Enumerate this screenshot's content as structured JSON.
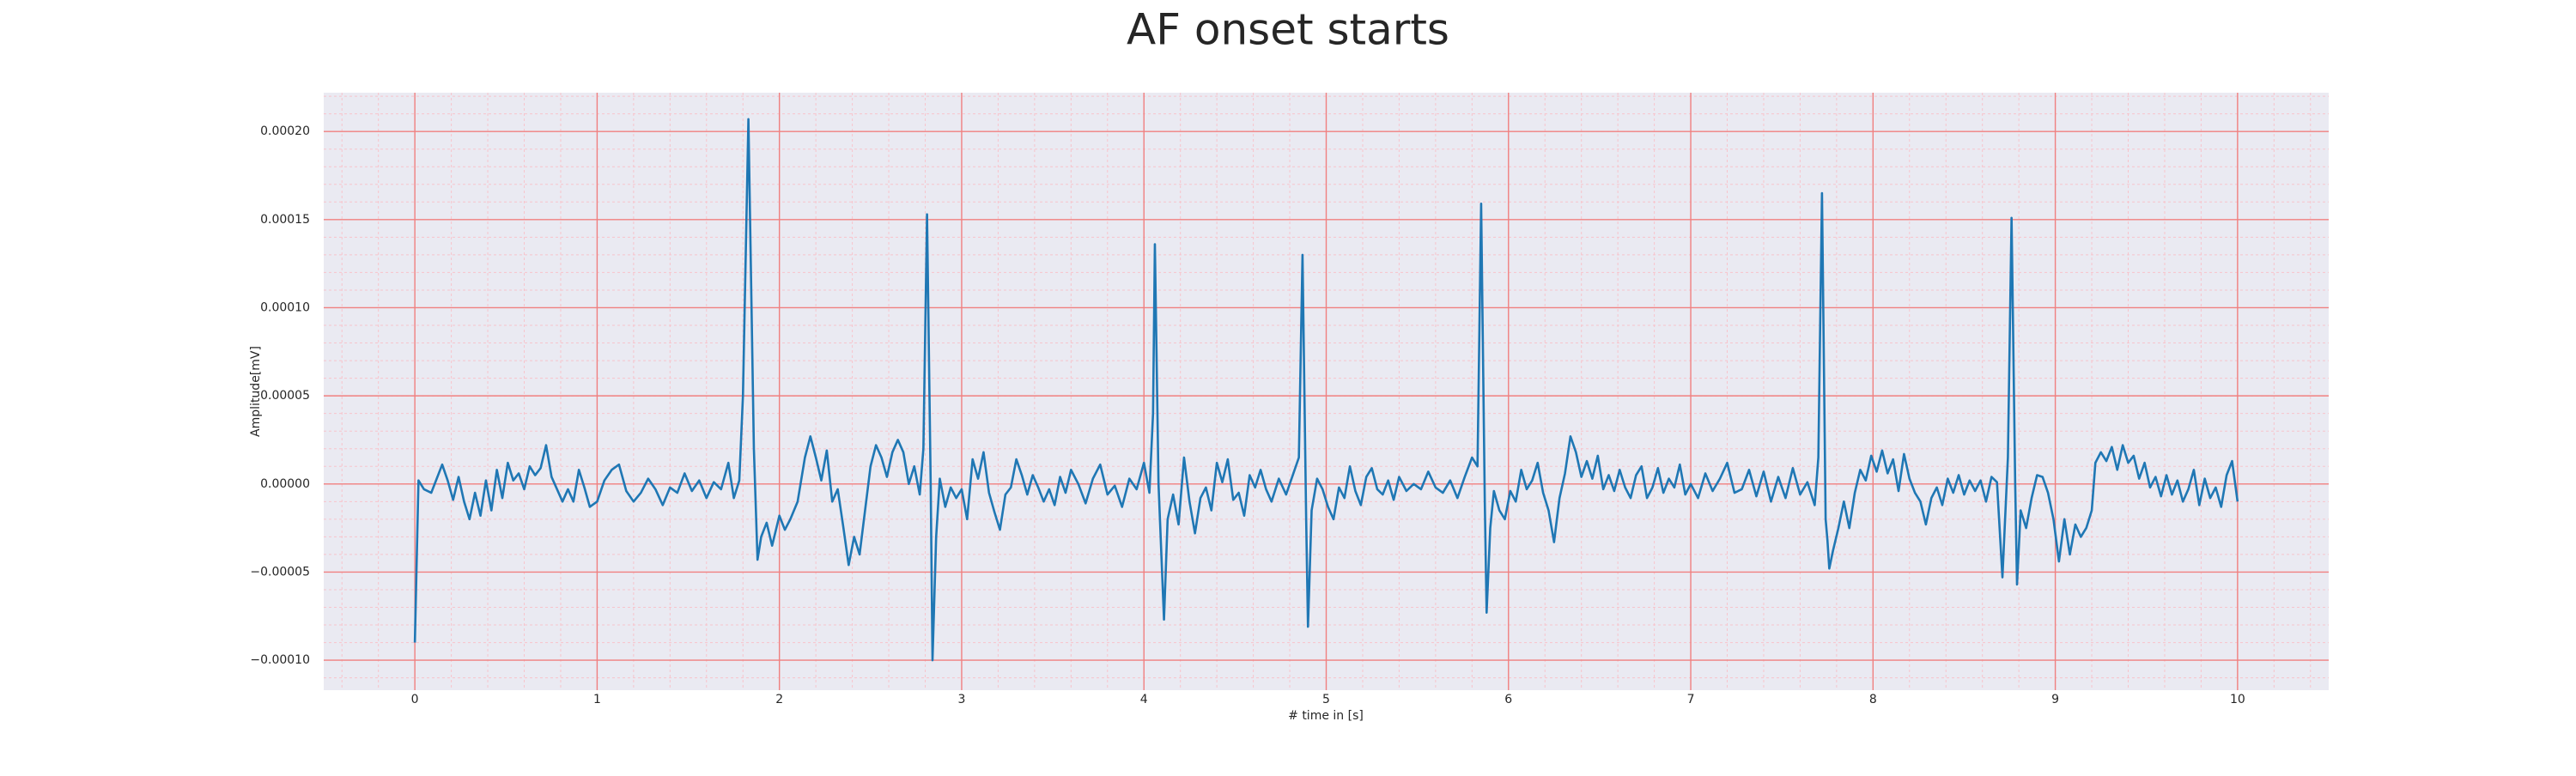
{
  "chart_data": {
    "type": "line",
    "title": "AF onset starts",
    "xlabel": "# time in [s]",
    "ylabel": "Amplitude[mV]",
    "color": "#1f77b4",
    "background": "#eaeaf2",
    "grid": true,
    "grid_color": "#f08080",
    "minor_grid": true,
    "minor_grid_color": "#f7c4cc",
    "minor_divisions": 5,
    "xlim": [
      -0.5,
      10.5
    ],
    "ylim": [
      -0.000117,
      0.000222
    ],
    "xticks": [
      0,
      1,
      2,
      3,
      4,
      5,
      6,
      7,
      8,
      9,
      10
    ],
    "yticks": [
      {
        "value": -0.0001,
        "label": "−0.00010"
      },
      {
        "value": -5e-05,
        "label": "−0.00005"
      },
      {
        "value": 0,
        "label": "0.00000"
      },
      {
        "value": 5e-05,
        "label": "0.00005"
      },
      {
        "value": 0.0001,
        "label": "0.00010"
      },
      {
        "value": 0.00015,
        "label": "0.00015"
      },
      {
        "value": 0.0002,
        "label": "0.00020"
      }
    ],
    "x": [
      0,
      0.02,
      0.05,
      0.09,
      0.12,
      0.15,
      0.18,
      0.21,
      0.24,
      0.27,
      0.3,
      0.33,
      0.36,
      0.39,
      0.42,
      0.45,
      0.48,
      0.51,
      0.54,
      0.57,
      0.6,
      0.63,
      0.66,
      0.69,
      0.72,
      0.75,
      0.78,
      0.81,
      0.84,
      0.87,
      0.9,
      0.93,
      0.96,
      1.0,
      1.04,
      1.08,
      1.12,
      1.16,
      1.2,
      1.24,
      1.28,
      1.32,
      1.36,
      1.4,
      1.44,
      1.48,
      1.52,
      1.56,
      1.6,
      1.64,
      1.68,
      1.72,
      1.75,
      1.78,
      1.8,
      1.83,
      1.86,
      1.88,
      1.9,
      1.93,
      1.96,
      2.0,
      2.03,
      2.06,
      2.1,
      2.14,
      2.17,
      2.2,
      2.23,
      2.26,
      2.29,
      2.32,
      2.35,
      2.38,
      2.41,
      2.44,
      2.47,
      2.5,
      2.53,
      2.56,
      2.59,
      2.62,
      2.65,
      2.68,
      2.71,
      2.74,
      2.77,
      2.79,
      2.81,
      2.83,
      2.84,
      2.86,
      2.88,
      2.91,
      2.94,
      2.97,
      3.0,
      3.03,
      3.06,
      3.09,
      3.12,
      3.15,
      3.18,
      3.21,
      3.24,
      3.27,
      3.3,
      3.33,
      3.36,
      3.39,
      3.42,
      3.45,
      3.48,
      3.51,
      3.54,
      3.57,
      3.6,
      3.64,
      3.68,
      3.72,
      3.76,
      3.8,
      3.84,
      3.88,
      3.92,
      3.96,
      4.0,
      4.03,
      4.05,
      4.06,
      4.08,
      4.11,
      4.13,
      4.16,
      4.19,
      4.22,
      4.25,
      4.28,
      4.31,
      4.34,
      4.37,
      4.4,
      4.43,
      4.46,
      4.49,
      4.52,
      4.55,
      4.58,
      4.61,
      4.64,
      4.67,
      4.7,
      4.74,
      4.78,
      4.82,
      4.85,
      4.87,
      4.89,
      4.9,
      4.92,
      4.95,
      4.98,
      5.01,
      5.04,
      5.07,
      5.1,
      5.13,
      5.16,
      5.19,
      5.22,
      5.25,
      5.28,
      5.31,
      5.34,
      5.37,
      5.4,
      5.44,
      5.48,
      5.52,
      5.56,
      5.6,
      5.64,
      5.68,
      5.72,
      5.76,
      5.8,
      5.83,
      5.85,
      5.87,
      5.88,
      5.9,
      5.92,
      5.95,
      5.98,
      6.01,
      6.04,
      6.07,
      6.1,
      6.13,
      6.16,
      6.19,
      6.22,
      6.25,
      6.28,
      6.31,
      6.34,
      6.37,
      6.4,
      6.43,
      6.46,
      6.49,
      6.52,
      6.55,
      6.58,
      6.61,
      6.64,
      6.67,
      6.7,
      6.73,
      6.76,
      6.79,
      6.82,
      6.85,
      6.88,
      6.91,
      6.94,
      6.97,
      7.0,
      7.04,
      7.08,
      7.12,
      7.16,
      7.2,
      7.24,
      7.28,
      7.32,
      7.36,
      7.4,
      7.44,
      7.48,
      7.52,
      7.56,
      7.6,
      7.64,
      7.68,
      7.7,
      7.72,
      7.74,
      7.75,
      7.76,
      7.78,
      7.81,
      7.84,
      7.87,
      7.9,
      7.93,
      7.96,
      7.99,
      8.02,
      8.05,
      8.08,
      8.11,
      8.14,
      8.17,
      8.2,
      8.23,
      8.26,
      8.29,
      8.32,
      8.35,
      8.38,
      8.41,
      8.44,
      8.47,
      8.5,
      8.53,
      8.56,
      8.59,
      8.62,
      8.65,
      8.68,
      8.71,
      8.74,
      8.76,
      8.78,
      8.79,
      8.81,
      8.84,
      8.87,
      8.9,
      8.93,
      8.96,
      8.99,
      9.02,
      9.05,
      9.08,
      9.11,
      9.14,
      9.17,
      9.2,
      9.22,
      9.25,
      9.28,
      9.31,
      9.34,
      9.37,
      9.4,
      9.43,
      9.46,
      9.49,
      9.52,
      9.55,
      9.58,
      9.61,
      9.64,
      9.67,
      9.7,
      9.73,
      9.76,
      9.79,
      9.82,
      9.85,
      9.88,
      9.91,
      9.94,
      9.97,
      10.0
    ],
    "values": [
      -9e-05,
      2e-06,
      -3e-06,
      -5e-06,
      3e-06,
      1.1e-05,
      2e-06,
      -9e-06,
      4e-06,
      -1e-05,
      -2e-05,
      -5e-06,
      -1.8e-05,
      2e-06,
      -1.5e-05,
      8e-06,
      -8e-06,
      1.2e-05,
      2e-06,
      6e-06,
      -3e-06,
      1e-05,
      5e-06,
      9e-06,
      2.2e-05,
      4e-06,
      -3e-06,
      -1e-05,
      -3e-06,
      -1e-05,
      8e-06,
      -2e-06,
      -1.3e-05,
      -1e-05,
      2e-06,
      8e-06,
      1.1e-05,
      -4e-06,
      -1e-05,
      -5e-06,
      3e-06,
      -3e-06,
      -1.2e-05,
      -2e-06,
      -5e-06,
      6e-06,
      -4e-06,
      2e-06,
      -8e-06,
      1e-06,
      -3e-06,
      1.2e-05,
      -8e-06,
      2e-06,
      5e-05,
      0.000207,
      2e-05,
      -4.3e-05,
      -3e-05,
      -2.2e-05,
      -3.5e-05,
      -1.8e-05,
      -2.6e-05,
      -2e-05,
      -1e-05,
      1.5e-05,
      2.7e-05,
      1.5e-05,
      2e-06,
      1.9e-05,
      -1e-05,
      -3e-06,
      -2.4e-05,
      -4.6e-05,
      -3e-05,
      -4e-05,
      -1.5e-05,
      1e-05,
      2.2e-05,
      1.5e-05,
      4e-06,
      1.8e-05,
      2.5e-05,
      1.8e-05,
      0,
      1e-05,
      -6e-06,
      2e-05,
      0.000153,
      0,
      -0.0001,
      -3e-05,
      3e-06,
      -1.3e-05,
      -2e-06,
      -8e-06,
      -3e-06,
      -2e-05,
      1.4e-05,
      3e-06,
      1.8e-05,
      -5e-06,
      -1.6e-05,
      -2.6e-05,
      -6e-06,
      -2e-06,
      1.4e-05,
      5e-06,
      -6e-06,
      5e-06,
      -2e-06,
      -1e-05,
      -3e-06,
      -1.2e-05,
      4e-06,
      -5e-06,
      8e-06,
      0,
      -1.1e-05,
      3e-06,
      1.1e-05,
      -6e-06,
      -1e-06,
      -1.3e-05,
      3e-06,
      -3e-06,
      1.2e-05,
      -5e-06,
      4e-05,
      0.000136,
      0,
      -7.7e-05,
      -2e-05,
      -6e-06,
      -2.3e-05,
      1.5e-05,
      -1e-05,
      -2.8e-05,
      -8e-06,
      -2e-06,
      -1.5e-05,
      1.2e-05,
      1e-06,
      1.4e-05,
      -9e-06,
      -5e-06,
      -1.8e-05,
      5e-06,
      -2e-06,
      8e-06,
      -3e-06,
      -1e-05,
      3e-06,
      -6e-06,
      6e-06,
      1.5e-05,
      0.00013,
      -2e-05,
      -8.1e-05,
      -1.5e-05,
      3e-06,
      -3e-06,
      -1.3e-05,
      -2e-05,
      -2e-06,
      -8e-06,
      1e-05,
      -4e-06,
      -1.2e-05,
      4e-06,
      9e-06,
      -3e-06,
      -6e-06,
      2e-06,
      -9e-06,
      4e-06,
      -4e-06,
      0,
      -3e-06,
      7e-06,
      -2e-06,
      -5e-06,
      2e-06,
      -8e-06,
      4e-06,
      1.5e-05,
      1e-05,
      0.000159,
      -1e-05,
      -7.3e-05,
      -2.5e-05,
      -4e-06,
      -1.5e-05,
      -2e-05,
      -4e-06,
      -1e-05,
      8e-06,
      -3e-06,
      2e-06,
      1.2e-05,
      -5e-06,
      -1.5e-05,
      -3.3e-05,
      -8e-06,
      6e-06,
      2.7e-05,
      1.8e-05,
      4e-06,
      1.3e-05,
      3e-06,
      1.6e-05,
      -3e-06,
      5e-06,
      -4e-06,
      8e-06,
      -2e-06,
      -8e-06,
      5e-06,
      1e-05,
      -8e-06,
      -2e-06,
      9e-06,
      -5e-06,
      3e-06,
      -2e-06,
      1.1e-05,
      -6e-06,
      0,
      -8e-06,
      6e-06,
      -4e-06,
      3e-06,
      1.2e-05,
      -5e-06,
      -3e-06,
      8e-06,
      -7e-06,
      7e-06,
      -1e-05,
      4e-06,
      -8e-06,
      9e-06,
      -6e-06,
      1e-06,
      -1.2e-05,
      1.5e-05,
      0.000165,
      -2e-05,
      -3.2e-05,
      -4.8e-05,
      -3.8e-05,
      -2.5e-05,
      -1e-05,
      -2.5e-05,
      -5e-06,
      8e-06,
      2e-06,
      1.6e-05,
      7e-06,
      1.9e-05,
      6e-06,
      1.4e-05,
      -4e-06,
      1.7e-05,
      3e-06,
      -5e-06,
      -1e-05,
      -2.3e-05,
      -8e-06,
      -2e-06,
      -1.2e-05,
      3e-06,
      -5e-06,
      5e-06,
      -6e-06,
      2e-06,
      -4e-06,
      2e-06,
      -1e-05,
      4e-06,
      1e-06,
      -5.3e-05,
      1.5e-05,
      0.000151,
      0,
      -5.7e-05,
      -1.5e-05,
      -2.5e-05,
      -8e-06,
      5e-06,
      4e-06,
      -5e-06,
      -2e-05,
      -4.4e-05,
      -2e-05,
      -4e-05,
      -2.3e-05,
      -3e-05,
      -2.5e-05,
      -1.5e-05,
      1.2e-05,
      1.8e-05,
      1.3e-05,
      2.1e-05,
      8e-06,
      2.2e-05,
      1.2e-05,
      1.6e-05,
      3e-06,
      1.2e-05,
      -2e-06,
      4e-06,
      -7e-06,
      5e-06,
      -6e-06,
      2e-06,
      -1e-05,
      -3e-06,
      8e-06,
      -1.2e-05,
      3e-06,
      -8e-06,
      -2e-06,
      -1.3e-05,
      5e-06,
      1.3e-05,
      -1e-05
    ]
  }
}
